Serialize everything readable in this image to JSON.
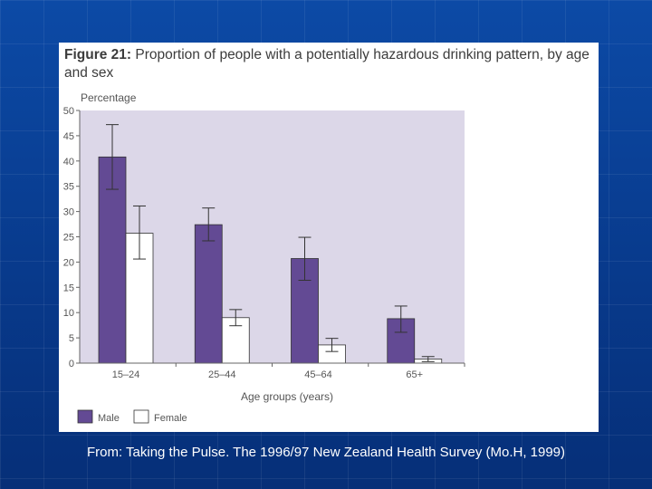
{
  "figure": {
    "label": "Figure 21:",
    "title": "Proportion of people with a potentially hazardous drinking pattern, by age and sex"
  },
  "caption": "From: Taking the Pulse. The 1996/97 New Zealand Health Survey (Mo.H, 1999)",
  "colors": {
    "male": "#634a94",
    "female": "#ffffff",
    "plot_bg": "#dcd7e8",
    "text": "#555555"
  },
  "chart_data": {
    "type": "bar",
    "title": "Proportion of people with a potentially hazardous drinking pattern, by age and sex",
    "ylabel": "Percentage",
    "xlabel": "Age groups (years)",
    "ylim": [
      0,
      50
    ],
    "yticks": [
      "0",
      "5",
      "10",
      "15",
      "20",
      "25",
      "30",
      "35",
      "40",
      "45",
      "50"
    ],
    "categories": [
      "15–24",
      "25–44",
      "45–64",
      "65+"
    ],
    "series": [
      {
        "name": "Male",
        "values": [
          40.8,
          27.4,
          20.7,
          8.8
        ],
        "error_low": [
          34.4,
          24.2,
          16.4,
          6.1
        ],
        "error_high": [
          47.2,
          30.7,
          24.9,
          11.3
        ]
      },
      {
        "name": "Female",
        "values": [
          25.7,
          9.0,
          3.6,
          0.8
        ],
        "error_low": [
          20.6,
          7.4,
          2.3,
          0.3
        ],
        "error_high": [
          31.1,
          10.6,
          4.9,
          1.3
        ]
      }
    ],
    "legend": [
      "Male",
      "Female"
    ],
    "legend_position": "bottom-left",
    "grid": false
  }
}
